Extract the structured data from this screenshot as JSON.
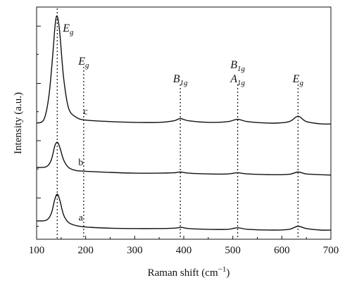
{
  "chart_data": {
    "type": "line",
    "xlabel": "Raman shift (cm",
    "xlabel_sup": "−1",
    "xlabel_tail": ")",
    "ylabel": "Intensity (a.u.)",
    "xlim": [
      100,
      700
    ],
    "x_ticks": [
      "100",
      "200",
      "300",
      "400",
      "500",
      "600",
      "700"
    ],
    "y_scale": "arbitrary units, curves vertically offset",
    "grid": false,
    "series": [
      {
        "name": "a",
        "points": [
          [
            100,
            0.12
          ],
          [
            120,
            0.13
          ],
          [
            130,
            0.22
          ],
          [
            137,
            0.4
          ],
          [
            142,
            0.47
          ],
          [
            147,
            0.4
          ],
          [
            155,
            0.2
          ],
          [
            165,
            0.1
          ],
          [
            180,
            0.06
          ],
          [
            200,
            0.04
          ],
          [
            250,
            0.025
          ],
          [
            300,
            0.02
          ],
          [
            350,
            0.02
          ],
          [
            380,
            0.025
          ],
          [
            395,
            0.035
          ],
          [
            410,
            0.02
          ],
          [
            450,
            0.01
          ],
          [
            490,
            0.01
          ],
          [
            510,
            0.03
          ],
          [
            530,
            0.01
          ],
          [
            580,
            0.0
          ],
          [
            615,
            0.01
          ],
          [
            633,
            0.05
          ],
          [
            650,
            0.02
          ],
          [
            680,
            0.0
          ],
          [
            700,
            0.0
          ]
        ]
      },
      {
        "name": "b",
        "points": [
          [
            100,
            0.82
          ],
          [
            120,
            0.83
          ],
          [
            130,
            0.92
          ],
          [
            137,
            1.1
          ],
          [
            142,
            1.15
          ],
          [
            147,
            1.09
          ],
          [
            155,
            0.92
          ],
          [
            165,
            0.82
          ],
          [
            180,
            0.78
          ],
          [
            200,
            0.77
          ],
          [
            250,
            0.755
          ],
          [
            300,
            0.745
          ],
          [
            350,
            0.745
          ],
          [
            380,
            0.75
          ],
          [
            393,
            0.76
          ],
          [
            410,
            0.745
          ],
          [
            450,
            0.735
          ],
          [
            490,
            0.735
          ],
          [
            510,
            0.75
          ],
          [
            530,
            0.735
          ],
          [
            580,
            0.725
          ],
          [
            615,
            0.73
          ],
          [
            633,
            0.76
          ],
          [
            650,
            0.735
          ],
          [
            680,
            0.725
          ],
          [
            700,
            0.72
          ]
        ]
      },
      {
        "name": "c",
        "points": [
          [
            100,
            1.4
          ],
          [
            115,
            1.45
          ],
          [
            125,
            1.75
          ],
          [
            133,
            2.3
          ],
          [
            138,
            2.7
          ],
          [
            142,
            2.8
          ],
          [
            147,
            2.6
          ],
          [
            155,
            2.0
          ],
          [
            165,
            1.6
          ],
          [
            180,
            1.48
          ],
          [
            200,
            1.44
          ],
          [
            250,
            1.42
          ],
          [
            300,
            1.41
          ],
          [
            350,
            1.41
          ],
          [
            380,
            1.43
          ],
          [
            393,
            1.46
          ],
          [
            410,
            1.43
          ],
          [
            450,
            1.41
          ],
          [
            490,
            1.42
          ],
          [
            510,
            1.45
          ],
          [
            530,
            1.42
          ],
          [
            580,
            1.4
          ],
          [
            615,
            1.42
          ],
          [
            633,
            1.49
          ],
          [
            650,
            1.42
          ],
          [
            680,
            1.39
          ],
          [
            700,
            1.39
          ]
        ]
      }
    ],
    "reference_lines": [
      {
        "x": 142,
        "label": "E",
        "sub": "g"
      },
      {
        "x": 196,
        "label": "E",
        "sub": "g"
      },
      {
        "x": 393,
        "label": "B",
        "sub": "1g"
      },
      {
        "x": 510,
        "label": "A",
        "sub": "1g",
        "label2": "B",
        "sub2": "1g"
      },
      {
        "x": 633,
        "label": "E",
        "sub": "g"
      }
    ],
    "colors": {
      "line": "#111111",
      "axis": "#111111"
    }
  }
}
